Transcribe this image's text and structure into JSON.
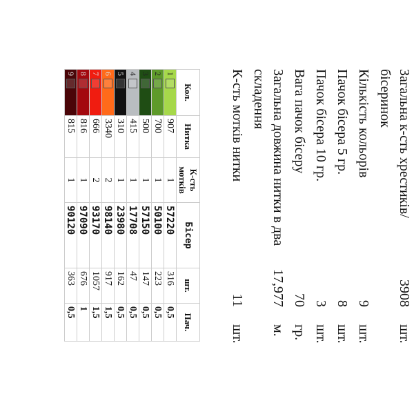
{
  "summary": [
    {
      "label": "Загальна к-сть хрестиків/бісеринок",
      "value": "3908",
      "unit": "шт."
    },
    {
      "label": "Кількість кольорів",
      "value": "9",
      "unit": "шт."
    },
    {
      "label": "Пачок бісера 5 гр.",
      "value": "8",
      "unit": "шт."
    },
    {
      "label": "Пачок бісера 10 гр.",
      "value": "3",
      "unit": "шт."
    },
    {
      "label": "Вага пачок бісеру",
      "value": "70",
      "unit": "гр."
    },
    {
      "label": "Загальна довжина нитки в два складення",
      "value": "17,977",
      "unit": "м."
    },
    {
      "label": "К-сть мотків нитки",
      "value": "11",
      "unit": "шт."
    }
  ],
  "table": {
    "header": [
      "Кол.",
      "Нитка",
      "К-сть мотків",
      "Бісер",
      "шт.",
      "Пач."
    ],
    "rows": [
      {
        "color": "#a6d84a",
        "cells": [
          "1",
          "907",
          "1",
          "57220",
          "316",
          "0,5"
        ]
      },
      {
        "color": "#5e9a2a",
        "cells": [
          "2",
          "700",
          "1",
          "50100",
          "223",
          "0,5"
        ]
      },
      {
        "color": "#1f4d14",
        "cells": [
          "3",
          "500",
          "1",
          "57150",
          "147",
          "0,5"
        ]
      },
      {
        "color": "#b9bdc0",
        "cells": [
          "4",
          "415",
          "1",
          "17708",
          "47",
          "0,5"
        ]
      },
      {
        "color": "#111111",
        "cells": [
          "5",
          "310",
          "1",
          "23980",
          "162",
          "0,5"
        ]
      },
      {
        "color": "#ff6a1a",
        "cells": [
          "6",
          "3340",
          "2",
          "98140",
          "917",
          "1,5"
        ]
      },
      {
        "color": "#f01c10",
        "cells": [
          "7",
          "666",
          "2",
          "93170",
          "1057",
          "1,5"
        ]
      },
      {
        "color": "#a3090f",
        "cells": [
          "8",
          "816",
          "1",
          "97090",
          "676",
          "1"
        ]
      },
      {
        "color": "#4a0508",
        "cells": [
          "9",
          "815",
          "1",
          "90120",
          "363",
          "0,5"
        ]
      }
    ]
  }
}
